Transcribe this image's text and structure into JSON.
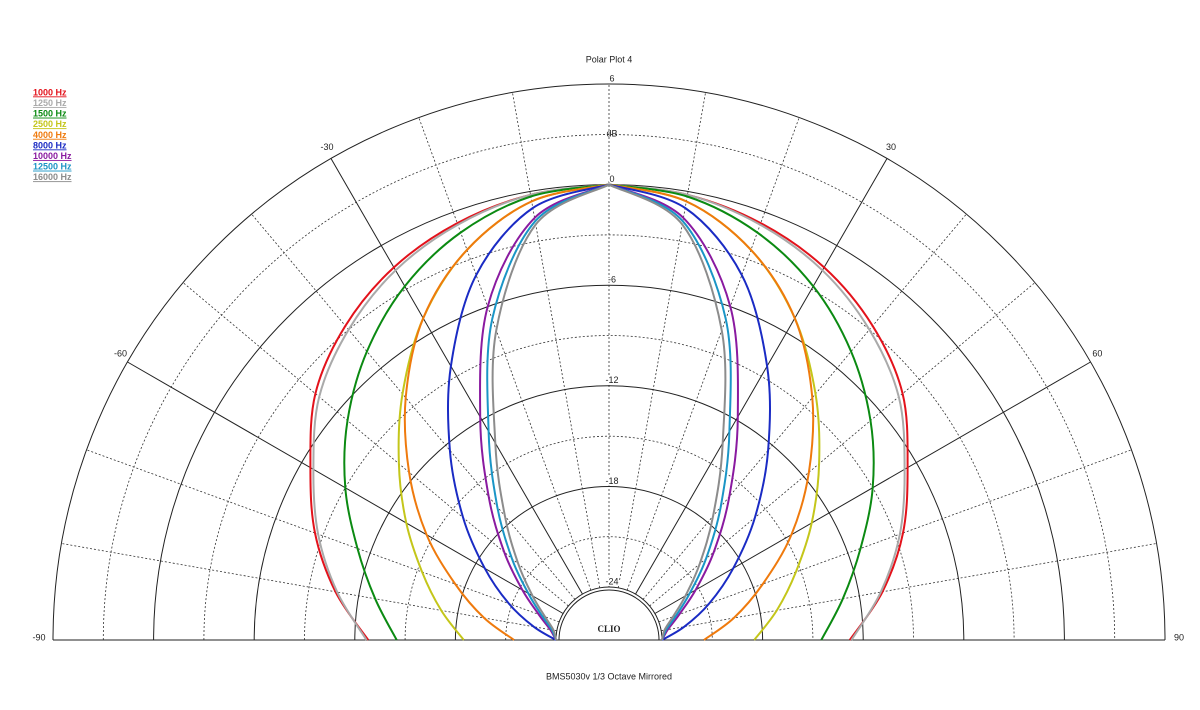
{
  "chart_data": {
    "type": "polar",
    "title": "Polar Plot 4",
    "subtitle": "BMS5030v  1/3 Octave  Mirrored",
    "brand": "CLIO",
    "r_label": "dB",
    "mirrored": true,
    "theta": [
      0,
      10,
      20,
      30,
      40,
      50,
      60,
      70,
      80,
      90
    ],
    "rlim": [
      -24,
      6
    ],
    "rticks": [
      -24,
      -18,
      -12,
      -6,
      0,
      6
    ],
    "minor_rticks": [
      -21,
      -15,
      -9,
      -3,
      3
    ],
    "thetaticks": [
      -90,
      -60,
      -30,
      30,
      60,
      90
    ],
    "minor_thetaticks": [
      -80,
      -70,
      -50,
      -40,
      -20,
      -10,
      0,
      10,
      20,
      40,
      50,
      70,
      80
    ],
    "series": [
      {
        "name": "1000 Hz",
        "color": "#e3121b",
        "values": [
          0,
          -0.2,
          -0.7,
          -1.5,
          -2.7,
          -4.3,
          -6.6,
          -8.5,
          -10.6,
          -12.8
        ]
      },
      {
        "name": "1250 Hz",
        "color": "#aaaaaa",
        "values": [
          0,
          -0.2,
          -0.8,
          -1.7,
          -3,
          -4.6,
          -6.8,
          -8.7,
          -10.7,
          -12.7
        ]
      },
      {
        "name": "1500 Hz",
        "color": "#0b8a12",
        "values": [
          0,
          -0.3,
          -1.3,
          -2.8,
          -4.7,
          -6.8,
          -9,
          -11.2,
          -13,
          -14.5
        ]
      },
      {
        "name": "2500 Hz",
        "color": "#c4c61a",
        "values": [
          0,
          -0.6,
          -2.4,
          -5,
          -8,
          -10.8,
          -13.2,
          -15.3,
          -17,
          -18.5
        ]
      },
      {
        "name": "4000 Hz",
        "color": "#ef7a0d",
        "values": [
          0,
          -0.6,
          -2.4,
          -5,
          -8.3,
          -11.6,
          -14.6,
          -17.4,
          -19.6,
          -21.5
        ]
      },
      {
        "name": "8000 Hz",
        "color": "#1a2bc4",
        "values": [
          0,
          -1,
          -4,
          -8.3,
          -12.4,
          -15.8,
          -18.6,
          -20.8,
          -22.6,
          -24
        ]
      },
      {
        "name": "10000 Hz",
        "color": "#8a1aa0",
        "values": [
          0,
          -1.6,
          -6,
          -11.8,
          -16,
          -19,
          -21.2,
          -22.7,
          -23.6,
          -24
        ]
      },
      {
        "name": "12500 Hz",
        "color": "#1a95c6",
        "values": [
          0,
          -1.8,
          -6.8,
          -12.8,
          -16.8,
          -19.6,
          -21.6,
          -22.9,
          -23.7,
          -24
        ]
      },
      {
        "name": "16000 Hz",
        "color": "#8c8c8c",
        "values": [
          0,
          -2,
          -7.5,
          -13.6,
          -17.5,
          -20.1,
          -21.9,
          -23.1,
          -23.8,
          -24
        ]
      }
    ]
  }
}
